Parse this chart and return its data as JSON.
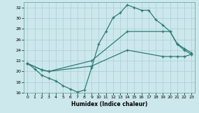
{
  "xlabel": "Humidex (Indice chaleur)",
  "bg_color": "#cce8ec",
  "line_color": "#2e7d72",
  "grid_color": "#aacdd4",
  "xlim": [
    -0.5,
    23.5
  ],
  "ylim": [
    16,
    33
  ],
  "xticks": [
    0,
    1,
    2,
    3,
    4,
    5,
    6,
    7,
    8,
    9,
    10,
    11,
    12,
    13,
    14,
    15,
    16,
    17,
    18,
    19,
    20,
    21,
    22,
    23
  ],
  "yticks": [
    16,
    18,
    20,
    22,
    24,
    26,
    28,
    30,
    32
  ],
  "line1_x": [
    0,
    1,
    2,
    3,
    4,
    5,
    6,
    7,
    8,
    9,
    10,
    11,
    12,
    13,
    14,
    15,
    16,
    17,
    18,
    19,
    20,
    21,
    22,
    23
  ],
  "line1_y": [
    21.5,
    20.5,
    19.3,
    18.7,
    18.2,
    17.3,
    16.7,
    16.1,
    16.5,
    20.7,
    25.2,
    27.5,
    30.1,
    31.0,
    32.5,
    32.0,
    31.5,
    31.5,
    29.7,
    28.7,
    27.5,
    25.1,
    24.0,
    23.2
  ],
  "line2_x": [
    0,
    2,
    3,
    9,
    14,
    19,
    20,
    21,
    22,
    23
  ],
  "line2_y": [
    21.5,
    20.3,
    20.0,
    22.0,
    27.5,
    27.5,
    27.5,
    25.2,
    24.3,
    23.5
  ],
  "line3_x": [
    0,
    2,
    3,
    9,
    14,
    19,
    20,
    21,
    22,
    23
  ],
  "line3_y": [
    21.5,
    20.3,
    20.0,
    21.0,
    24.0,
    22.8,
    22.8,
    22.8,
    22.8,
    23.2
  ]
}
